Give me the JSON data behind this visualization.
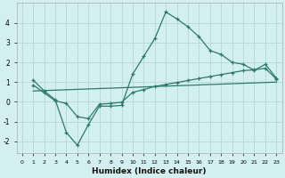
{
  "xlabel": "Humidex (Indice chaleur)",
  "background_color": "#d4efef",
  "grid_color": "#b8dcdc",
  "line_color": "#2d7a6a",
  "xlim": [
    -0.5,
    23.5
  ],
  "ylim": [
    -2.6,
    5.0
  ],
  "x_ticks": [
    0,
    1,
    2,
    3,
    4,
    5,
    6,
    7,
    8,
    9,
    10,
    11,
    12,
    13,
    14,
    15,
    16,
    17,
    18,
    19,
    20,
    21,
    22,
    23
  ],
  "y_ticks": [
    -2,
    -1,
    0,
    1,
    2,
    3,
    4
  ],
  "series1_x": [
    1,
    2,
    3,
    4,
    5,
    6,
    7,
    8,
    9,
    10,
    11,
    12,
    13,
    14,
    15,
    16,
    17,
    18,
    19,
    20,
    21,
    22,
    23
  ],
  "series1_y": [
    1.1,
    0.55,
    0.1,
    -1.55,
    -2.2,
    -1.15,
    -0.22,
    -0.22,
    -0.18,
    1.4,
    2.3,
    3.2,
    4.55,
    4.2,
    3.8,
    3.3,
    2.6,
    2.4,
    2.0,
    1.9,
    1.6,
    1.9,
    1.2
  ],
  "series2_x": [
    1,
    2,
    3,
    4,
    5,
    6,
    7,
    8,
    9,
    10,
    11,
    12,
    13,
    14,
    15,
    16,
    17,
    18,
    19,
    20,
    21,
    22,
    23
  ],
  "series2_y": [
    0.85,
    0.45,
    0.05,
    -0.08,
    -0.75,
    -0.85,
    -0.12,
    -0.08,
    -0.02,
    0.48,
    0.62,
    0.78,
    0.88,
    0.98,
    1.08,
    1.18,
    1.28,
    1.38,
    1.48,
    1.58,
    1.62,
    1.7,
    1.15
  ],
  "series3_x": [
    1,
    23
  ],
  "series3_y": [
    0.55,
    1.0
  ]
}
